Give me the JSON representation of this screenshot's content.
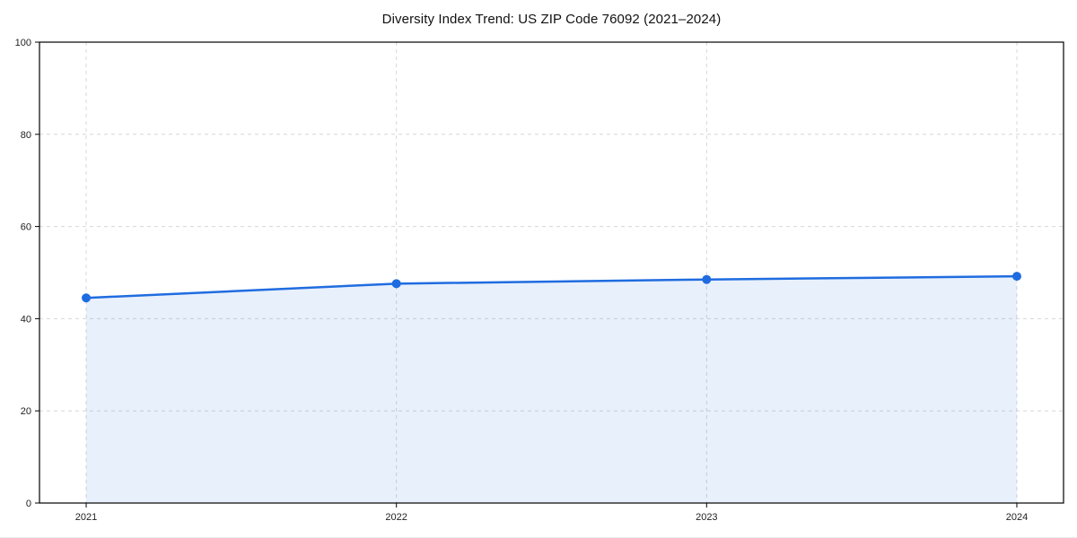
{
  "chart_data": {
    "type": "area",
    "title": "Diversity Index Trend: US ZIP Code 76092 (2021–2024)",
    "x": [
      "2021",
      "2022",
      "2023",
      "2024"
    ],
    "values": [
      44.5,
      47.6,
      48.5,
      49.2
    ],
    "xlabel": "",
    "ylabel": "",
    "ylim": [
      0,
      100
    ],
    "yticks": [
      0,
      20,
      40,
      60,
      80,
      100
    ],
    "grid": "dashed, both axes",
    "legend_position": "none",
    "colors": {
      "line": "#1f6ce0",
      "marker": "#1f6ce0",
      "fill": "rgba(31,108,224,0.10)",
      "grid": "#d6d6d6",
      "spine": "#000000",
      "tick_label": "#222222",
      "title": "#111111",
      "background": "#ffffff"
    }
  }
}
